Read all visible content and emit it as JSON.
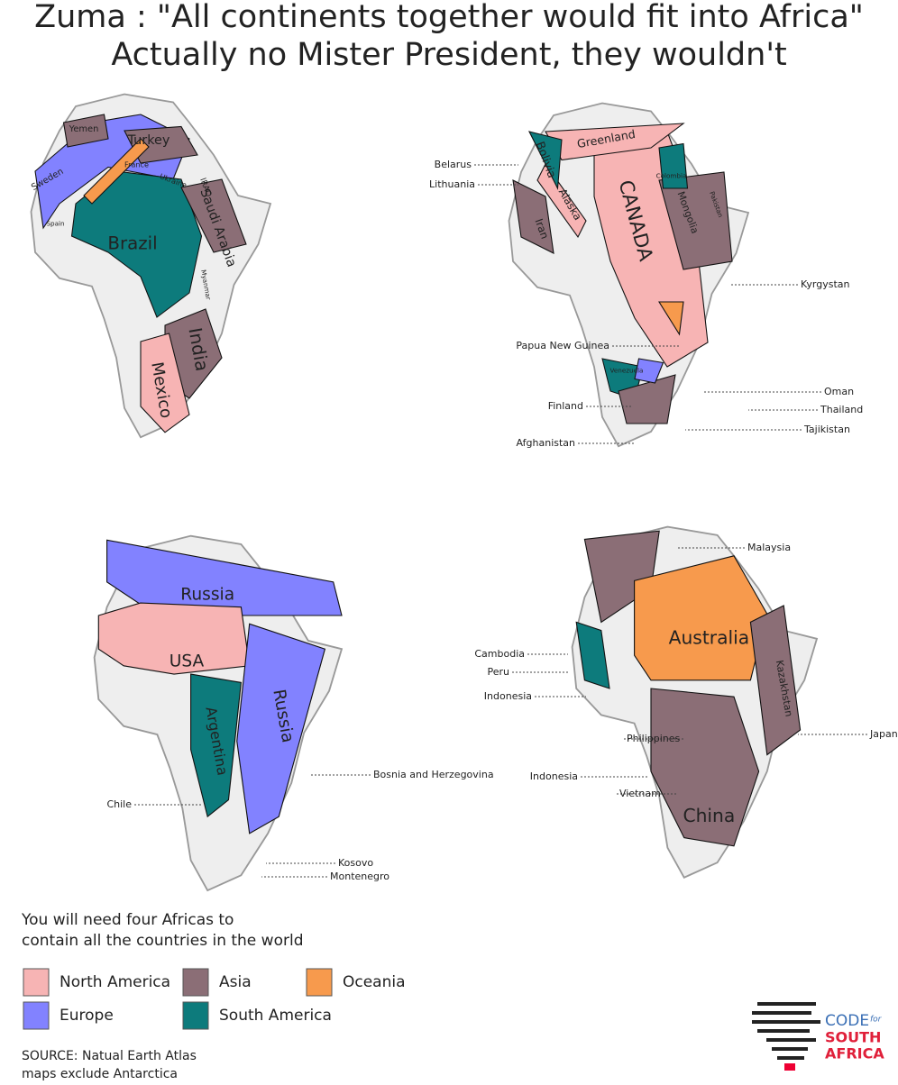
{
  "title": [
    "Zuma : \"All continents together would fit into Africa\"",
    "Actually no Mister President, they wouldn't"
  ],
  "maps": [
    {
      "labels": [
        "Yemen",
        "Turkey",
        "Sweden",
        "France",
        "Ukraine",
        "IRAQ",
        "Saudi Arabia",
        "Brazil",
        "Spain",
        "Myanmar",
        "India",
        "Mexico"
      ],
      "callouts": []
    },
    {
      "labels": [
        "Greenland",
        "Bolivia",
        "Alaska",
        "Iran",
        "CANADA",
        "Colombia",
        "Mongolia",
        "Pakistan",
        "Venezuela"
      ],
      "callouts": [
        "Belarus",
        "Lithuania",
        "Kyrgystan",
        "Papua New Guinea",
        "Finland",
        "Oman",
        "Thailand",
        "Tajikistan",
        "Afghanistan"
      ]
    },
    {
      "labels": [
        "Russia",
        "USA",
        "Russia",
        "Argentina"
      ],
      "callouts": [
        "Chile",
        "Bosnia and Herzegovina",
        "Kosovo",
        "Montenegro"
      ]
    },
    {
      "labels": [
        "Australia",
        "Kazakhstan",
        "China"
      ],
      "callouts": [
        "Malaysia",
        "Cambodia",
        "Peru",
        "Indonesia",
        "Philippines",
        "Indonesia",
        "Vietnam",
        "Japan"
      ]
    }
  ],
  "note": [
    "You will need four Africas to",
    "contain all the countries in the world"
  ],
  "legend": [
    {
      "label": "North America",
      "color": "#f7b4b4"
    },
    {
      "label": "Europe",
      "color": "#8282ff"
    },
    {
      "label": "Asia",
      "color": "#8b6e76"
    },
    {
      "label": "South America",
      "color": "#0d7b7c"
    },
    {
      "label": "Oceania",
      "color": "#f79a4d"
    }
  ],
  "source": [
    "SOURCE: Natual Earth Atlas",
    "maps exclude Antarctica"
  ],
  "logo": {
    "code": "CODE",
    "for": "for",
    "south": "SOUTH",
    "africa": "AFRICA"
  }
}
